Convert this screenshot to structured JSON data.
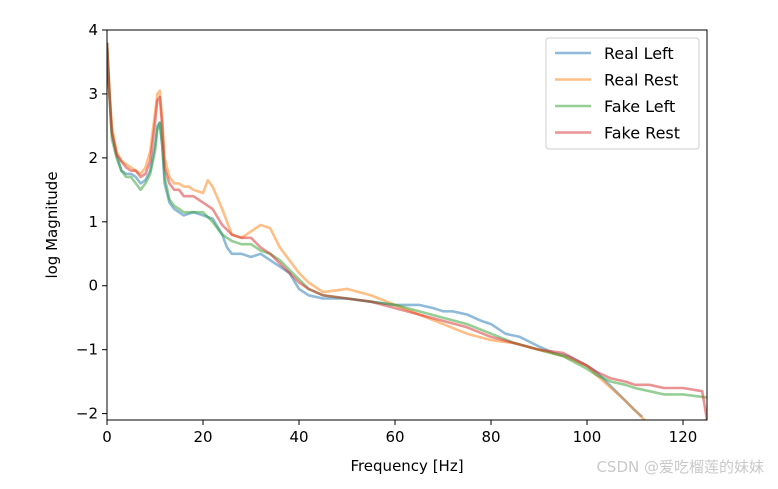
{
  "chart_data": {
    "type": "line",
    "title": "",
    "xlabel": "Frequency [Hz]",
    "ylabel": "log Magnitude",
    "xlim": [
      0,
      125
    ],
    "ylim": [
      -2.1,
      4
    ],
    "xticks": [
      0,
      20,
      40,
      60,
      80,
      100,
      120
    ],
    "yticks": [
      -2,
      -1,
      0,
      1,
      2,
      3,
      4
    ],
    "ytick_labels": [
      "−2",
      "−1",
      "0",
      "1",
      "2",
      "3",
      "4"
    ],
    "grid": false,
    "legend": "top-right",
    "series": [
      {
        "name": "Real Left",
        "color": "#1f77b4",
        "x": [
          0,
          0.5,
          1,
          2,
          3,
          4,
          5,
          6,
          7,
          8,
          9,
          10,
          10.5,
          11,
          11.5,
          12,
          13,
          14,
          15,
          16,
          18,
          20,
          22,
          24,
          25,
          26,
          28,
          30,
          32,
          34,
          36,
          38,
          40,
          42,
          45,
          50,
          55,
          60,
          62,
          65,
          68,
          70,
          72,
          75,
          78,
          80,
          83,
          86,
          90,
          93,
          96,
          100,
          102,
          104,
          106,
          108,
          110,
          111.5
        ],
        "y": [
          3.8,
          3.0,
          2.4,
          2.05,
          1.8,
          1.75,
          1.75,
          1.7,
          1.6,
          1.65,
          1.8,
          2.2,
          2.5,
          2.55,
          2.2,
          1.6,
          1.3,
          1.2,
          1.15,
          1.1,
          1.15,
          1.1,
          1.05,
          0.8,
          0.6,
          0.5,
          0.5,
          0.45,
          0.5,
          0.4,
          0.3,
          0.2,
          -0.05,
          -0.15,
          -0.2,
          -0.2,
          -0.25,
          -0.3,
          -0.3,
          -0.3,
          -0.35,
          -0.4,
          -0.4,
          -0.45,
          -0.55,
          -0.6,
          -0.75,
          -0.8,
          -0.95,
          -1.05,
          -1.1,
          -1.25,
          -1.35,
          -1.5,
          -1.65,
          -1.8,
          -1.95,
          -2.05
        ]
      },
      {
        "name": "Real Rest",
        "color": "#ff7f0e",
        "x": [
          0,
          0.5,
          1,
          2,
          3,
          4,
          5,
          6,
          7,
          8,
          9,
          10,
          10.5,
          11,
          11.5,
          12,
          13,
          14,
          15,
          16,
          17,
          18,
          20,
          21,
          22,
          24,
          25,
          26,
          28,
          30,
          32,
          34,
          36,
          38,
          40,
          42,
          45,
          50,
          55,
          60,
          65,
          70,
          75,
          80,
          85,
          90,
          95,
          100,
          102,
          105,
          108,
          110,
          112
        ],
        "y": [
          3.8,
          3.1,
          2.5,
          2.1,
          1.95,
          1.9,
          1.85,
          1.8,
          1.75,
          1.85,
          2.1,
          2.7,
          3.0,
          3.05,
          2.6,
          2.0,
          1.7,
          1.6,
          1.6,
          1.55,
          1.55,
          1.5,
          1.45,
          1.65,
          1.55,
          1.2,
          1.0,
          0.8,
          0.75,
          0.85,
          0.95,
          0.9,
          0.6,
          0.4,
          0.2,
          0.05,
          -0.1,
          -0.05,
          -0.15,
          -0.3,
          -0.45,
          -0.6,
          -0.75,
          -0.85,
          -0.9,
          -1.0,
          -1.1,
          -1.25,
          -1.4,
          -1.6,
          -1.8,
          -1.95,
          -2.1
        ]
      },
      {
        "name": "Fake Left",
        "color": "#2ca02c",
        "x": [
          0,
          0.5,
          1,
          2,
          3,
          4,
          5,
          6,
          7,
          8,
          9,
          10,
          10.5,
          11,
          11.5,
          12,
          13,
          14,
          15,
          16,
          18,
          20,
          22,
          24,
          26,
          28,
          30,
          32,
          34,
          36,
          38,
          40,
          42,
          45,
          50,
          55,
          60,
          65,
          70,
          75,
          80,
          85,
          90,
          95,
          100,
          102,
          105,
          108,
          110,
          113,
          116,
          120,
          125
        ],
        "y": [
          3.8,
          3.0,
          2.3,
          2.0,
          1.8,
          1.7,
          1.7,
          1.6,
          1.5,
          1.6,
          1.75,
          2.1,
          2.45,
          2.55,
          2.2,
          1.7,
          1.35,
          1.25,
          1.2,
          1.15,
          1.15,
          1.15,
          1.0,
          0.8,
          0.7,
          0.65,
          0.65,
          0.55,
          0.5,
          0.4,
          0.25,
          0.1,
          -0.05,
          -0.15,
          -0.2,
          -0.25,
          -0.3,
          -0.4,
          -0.5,
          -0.6,
          -0.75,
          -0.9,
          -1.0,
          -1.1,
          -1.3,
          -1.4,
          -1.5,
          -1.55,
          -1.6,
          -1.65,
          -1.7,
          -1.7,
          -1.75
        ]
      },
      {
        "name": "Fake Rest",
        "color": "#d62728",
        "x": [
          0,
          0.5,
          1,
          2,
          3,
          4,
          5,
          6,
          7,
          8,
          9,
          10,
          10.5,
          11,
          11.5,
          12,
          13,
          14,
          15,
          16,
          18,
          20,
          22,
          24,
          26,
          28,
          30,
          32,
          34,
          36,
          38,
          40,
          42,
          45,
          50,
          55,
          60,
          65,
          70,
          75,
          80,
          85,
          90,
          95,
          100,
          102,
          105,
          108,
          110,
          113,
          116,
          120,
          124,
          125
        ],
        "y": [
          3.8,
          3.0,
          2.4,
          2.05,
          1.95,
          1.85,
          1.8,
          1.8,
          1.7,
          1.75,
          1.95,
          2.55,
          2.9,
          2.95,
          2.5,
          1.85,
          1.6,
          1.5,
          1.5,
          1.4,
          1.4,
          1.3,
          1.2,
          0.95,
          0.8,
          0.75,
          0.75,
          0.6,
          0.5,
          0.35,
          0.2,
          0.05,
          -0.05,
          -0.15,
          -0.2,
          -0.25,
          -0.35,
          -0.45,
          -0.55,
          -0.65,
          -0.8,
          -0.9,
          -1.0,
          -1.05,
          -1.25,
          -1.35,
          -1.45,
          -1.5,
          -1.55,
          -1.55,
          -1.6,
          -1.6,
          -1.65,
          -2.1
        ]
      }
    ]
  },
  "watermark": "CSDN @爱吃榴莲的妹妹"
}
